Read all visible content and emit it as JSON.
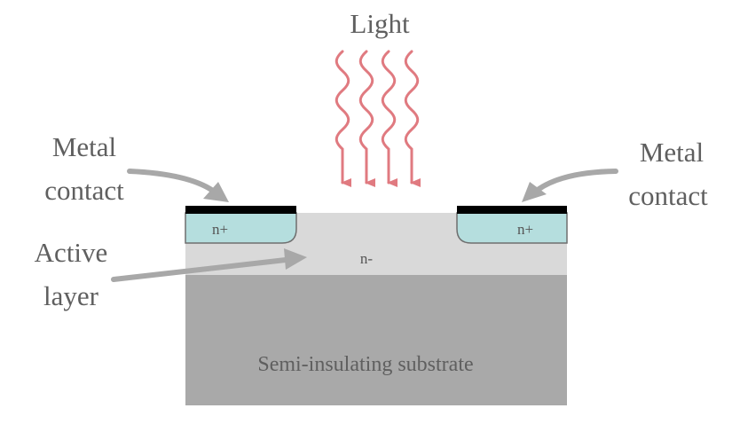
{
  "diagram": {
    "light_label": "Light",
    "left_contact_label": [
      "Metal",
      "contact"
    ],
    "right_contact_label": [
      "Metal",
      "contact"
    ],
    "active_layer_label": [
      "Active",
      "layer"
    ],
    "n_plus_left": "n+",
    "n_plus_right": "n+",
    "n_minus": "n-",
    "substrate_label": "Semi-insulating substrate"
  },
  "colors": {
    "light_rays": "#e07a80",
    "arrows": "#a8a8a8",
    "metal": "#000000",
    "n_plus_region": "#b5dede",
    "active_layer": "#d9d9d9",
    "substrate": "#a9a9a9",
    "text": "#5f5f5f"
  }
}
